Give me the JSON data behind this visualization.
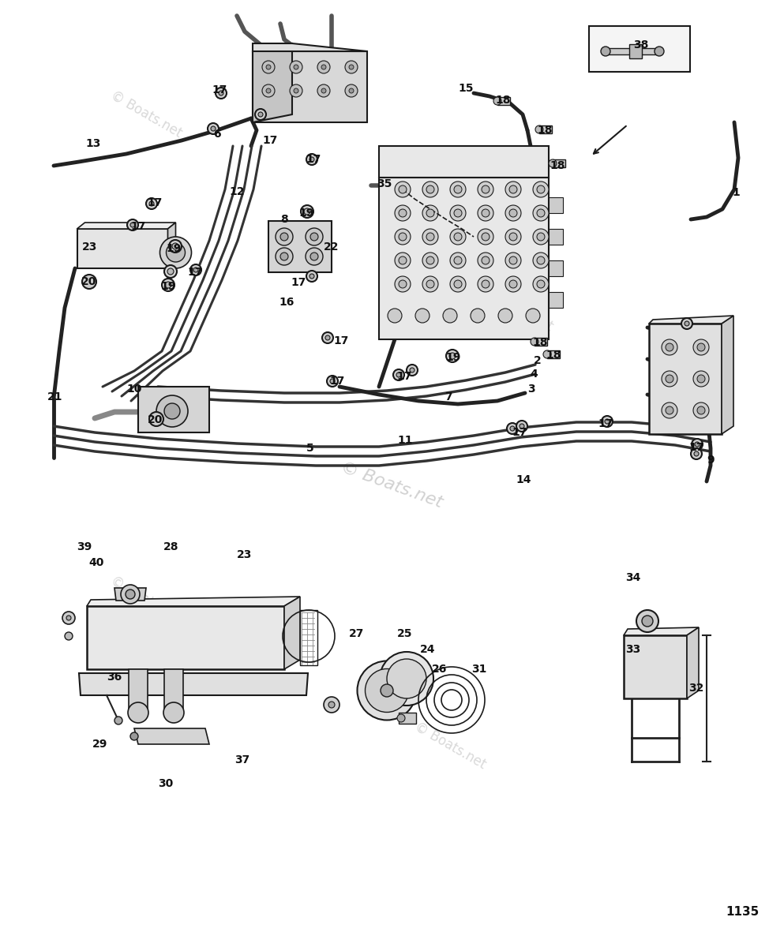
{
  "bg_color": "#ffffff",
  "line_color": "#1a1a1a",
  "hose_lw": 2.5,
  "label_fontsize": 10,
  "watermark_color": "#d8d8d8",
  "page_number": "1135",
  "labels": [
    [
      "1",
      932,
      244
    ],
    [
      "2",
      681,
      457
    ],
    [
      "3",
      673,
      493
    ],
    [
      "4",
      676,
      474
    ],
    [
      "5",
      393,
      568
    ],
    [
      "6",
      275,
      170
    ],
    [
      "7",
      568,
      503
    ],
    [
      "8",
      360,
      278
    ],
    [
      "9",
      900,
      583
    ],
    [
      "10",
      170,
      493
    ],
    [
      "11",
      513,
      558
    ],
    [
      "12",
      300,
      243
    ],
    [
      "13",
      118,
      182
    ],
    [
      "14",
      663,
      608
    ],
    [
      "15",
      590,
      112
    ],
    [
      "16",
      363,
      383
    ],
    [
      "17",
      278,
      114
    ],
    [
      "17",
      196,
      257
    ],
    [
      "17",
      175,
      287
    ],
    [
      "17",
      247,
      345
    ],
    [
      "17",
      397,
      202
    ],
    [
      "17",
      342,
      178
    ],
    [
      "17",
      378,
      358
    ],
    [
      "17",
      432,
      432
    ],
    [
      "17",
      427,
      483
    ],
    [
      "17",
      512,
      477
    ],
    [
      "17",
      658,
      548
    ],
    [
      "17",
      767,
      537
    ],
    [
      "17",
      882,
      567
    ],
    [
      "18",
      637,
      127
    ],
    [
      "18",
      690,
      165
    ],
    [
      "18",
      706,
      210
    ],
    [
      "18",
      684,
      434
    ],
    [
      "18",
      701,
      450
    ],
    [
      "19",
      220,
      315
    ],
    [
      "19",
      213,
      363
    ],
    [
      "19",
      388,
      270
    ],
    [
      "19",
      574,
      453
    ],
    [
      "20",
      113,
      357
    ],
    [
      "20",
      197,
      532
    ],
    [
      "21",
      70,
      503
    ],
    [
      "22",
      420,
      313
    ],
    [
      "23",
      114,
      313
    ],
    [
      "23",
      310,
      703
    ],
    [
      "24",
      542,
      823
    ],
    [
      "25",
      513,
      803
    ],
    [
      "26",
      557,
      848
    ],
    [
      "27",
      452,
      803
    ],
    [
      "28",
      217,
      693
    ],
    [
      "29",
      127,
      943
    ],
    [
      "30",
      210,
      993
    ],
    [
      "31",
      607,
      848
    ],
    [
      "32",
      882,
      872
    ],
    [
      "33",
      802,
      823
    ],
    [
      "34",
      802,
      732
    ],
    [
      "35",
      487,
      233
    ],
    [
      "36",
      145,
      858
    ],
    [
      "37",
      307,
      963
    ],
    [
      "38",
      812,
      57
    ],
    [
      "39",
      107,
      693
    ],
    [
      "40",
      122,
      713
    ]
  ]
}
